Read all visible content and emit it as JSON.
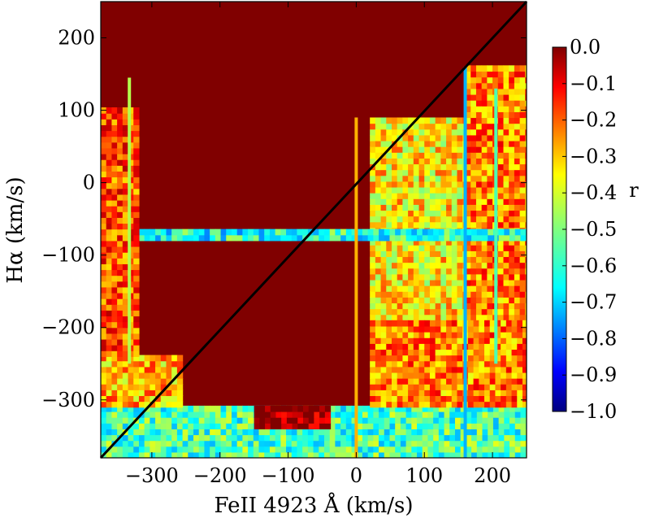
{
  "chart_data": {
    "type": "heatmap",
    "title": "",
    "xlabel": "FeII 4923 Å (km/s)",
    "ylabel": "Hα (km/s)",
    "xlim": [
      -375,
      250
    ],
    "ylim": [
      -380,
      250
    ],
    "xticks": [
      -300,
      -200,
      -100,
      0,
      100,
      200
    ],
    "yticks": [
      -300,
      -200,
      -100,
      0,
      100,
      200
    ],
    "xtick_labels": [
      "−300",
      "−200",
      "−100",
      "0",
      "100",
      "200"
    ],
    "ytick_labels": [
      "−300",
      "−200",
      "−100",
      "0",
      "100",
      "200"
    ],
    "colorbar": {
      "label": "r",
      "range": [
        -1.0,
        0.0
      ],
      "ticks": [
        0.0,
        -0.1,
        -0.2,
        -0.3,
        -0.4,
        -0.5,
        -0.6,
        -0.7,
        -0.8,
        -0.9,
        -1.0
      ],
      "tick_labels": [
        "0.0",
        "−0.1",
        "−0.2",
        "−0.3",
        "−0.4",
        "−0.5",
        "−0.6",
        "−0.7",
        "−0.8",
        "−0.9",
        "−1.0"
      ],
      "colormap": "jet",
      "colors": [
        "#00007f",
        "#0000ff",
        "#007fff",
        "#00ffff",
        "#7fff7f",
        "#ffff00",
        "#ff7f00",
        "#ff0000",
        "#7f0000"
      ]
    },
    "background_value": 0.0,
    "diagonal_line": {
      "from": [
        -375,
        -380
      ],
      "to": [
        250,
        250
      ],
      "color": "#000000"
    },
    "regions": [
      {
        "x": [
          20,
          160
        ],
        "y": [
          -190,
          85
        ],
        "r": -0.35
      },
      {
        "x": [
          160,
          250
        ],
        "y": [
          -190,
          160
        ],
        "r": -0.25
      },
      {
        "x": [
          -375,
          250
        ],
        "y": [
          -80,
          -65
        ],
        "r": -0.6
      },
      {
        "x": [
          -375,
          250
        ],
        "y": [
          -380,
          -310
        ],
        "r": -0.55
      },
      {
        "x": [
          -375,
          -255
        ],
        "y": [
          -310,
          -240
        ],
        "r": -0.3
      },
      {
        "x": [
          -375,
          -320
        ],
        "y": [
          -240,
          100
        ],
        "r": -0.2
      },
      {
        "x": [
          20,
          250
        ],
        "y": [
          -310,
          -190
        ],
        "r": -0.25
      },
      {
        "x": [
          -150,
          -40
        ],
        "y": [
          -340,
          -315
        ],
        "r": 0.0
      }
    ],
    "stripes": [
      {
        "x": 160,
        "y": [
          -380,
          160
        ],
        "r": -0.7
      },
      {
        "x": 205,
        "y": [
          -250,
          130
        ],
        "r": -0.55
      },
      {
        "x": -333,
        "y": [
          -250,
          145
        ],
        "r": -0.45
      },
      {
        "x": 0,
        "y": [
          -380,
          90
        ],
        "r": -0.3
      }
    ]
  }
}
